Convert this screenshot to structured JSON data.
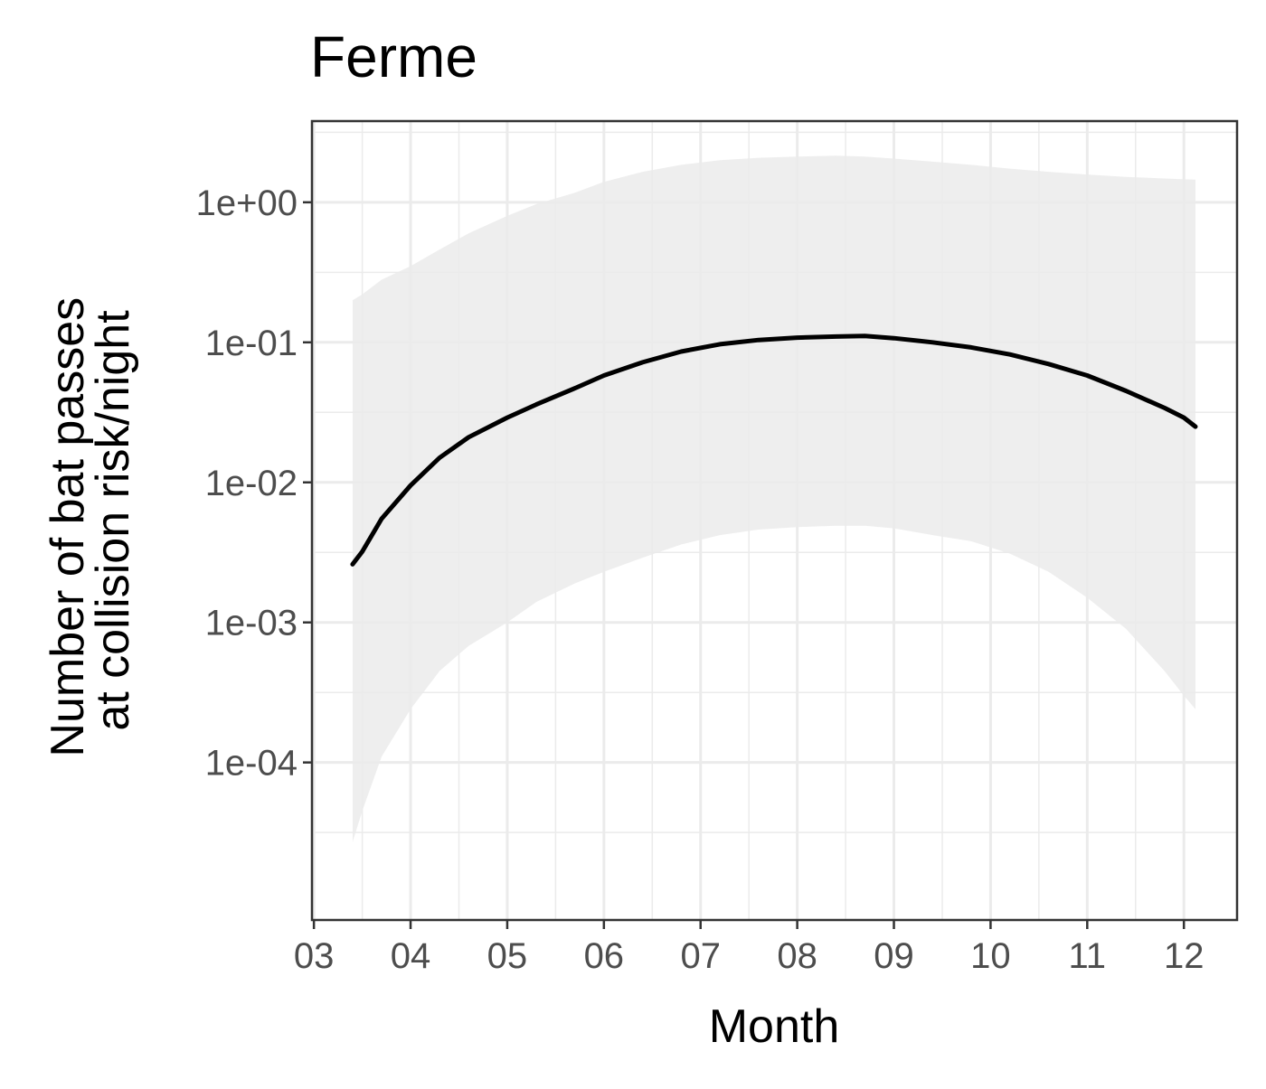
{
  "chart_data": {
    "type": "line",
    "title": "Ferme",
    "xlabel": "Month",
    "ylabel": [
      "Number of bat passes",
      "at collision risk/night"
    ],
    "x_ticks": [
      "03",
      "04",
      "05",
      "06",
      "07",
      "08",
      "09",
      "10",
      "11",
      "12"
    ],
    "y_ticks": [
      {
        "value": 0.0001,
        "label": "1e-04"
      },
      {
        "value": 0.001,
        "label": "1e-03"
      },
      {
        "value": 0.01,
        "label": "1e-02"
      },
      {
        "value": 0.1,
        "label": "1e-01"
      },
      {
        "value": 1,
        "label": "1e+00"
      }
    ],
    "x_unit": "month",
    "xlim": [
      2.98,
      12.55
    ],
    "ylim": [
      7.5e-06,
      3.8
    ],
    "y_scale": "log10",
    "grid": true,
    "series": [
      {
        "color": "#000000",
        "ribbon_color": "#ebebeb",
        "points": [
          {
            "x": 3.4,
            "y": 0.0026,
            "lower": 2.7e-05,
            "upper": 0.2
          },
          {
            "x": 3.5,
            "y": 0.0032,
            "lower": 4.5e-05,
            "upper": 0.22
          },
          {
            "x": 3.7,
            "y": 0.0055,
            "lower": 0.00011,
            "upper": 0.28
          },
          {
            "x": 4.0,
            "y": 0.0095,
            "lower": 0.00024,
            "upper": 0.35
          },
          {
            "x": 4.3,
            "y": 0.015,
            "lower": 0.00045,
            "upper": 0.46
          },
          {
            "x": 4.6,
            "y": 0.021,
            "lower": 0.00068,
            "upper": 0.6
          },
          {
            "x": 5.0,
            "y": 0.029,
            "lower": 0.001,
            "upper": 0.8
          },
          {
            "x": 5.3,
            "y": 0.036,
            "lower": 0.0014,
            "upper": 0.97
          },
          {
            "x": 5.7,
            "y": 0.047,
            "lower": 0.0019,
            "upper": 1.17
          },
          {
            "x": 6.0,
            "y": 0.058,
            "lower": 0.0023,
            "upper": 1.4
          },
          {
            "x": 6.4,
            "y": 0.072,
            "lower": 0.0029,
            "upper": 1.65
          },
          {
            "x": 6.8,
            "y": 0.086,
            "lower": 0.0036,
            "upper": 1.85
          },
          {
            "x": 7.2,
            "y": 0.097,
            "lower": 0.0042,
            "upper": 2.0
          },
          {
            "x": 7.6,
            "y": 0.104,
            "lower": 0.0046,
            "upper": 2.08
          },
          {
            "x": 8.0,
            "y": 0.108,
            "lower": 0.0048,
            "upper": 2.12
          },
          {
            "x": 8.4,
            "y": 0.11,
            "lower": 0.0049,
            "upper": 2.15
          },
          {
            "x": 8.7,
            "y": 0.111,
            "lower": 0.0049,
            "upper": 2.12
          },
          {
            "x": 9.0,
            "y": 0.107,
            "lower": 0.0047,
            "upper": 2.05
          },
          {
            "x": 9.4,
            "y": 0.1,
            "lower": 0.0042,
            "upper": 1.95
          },
          {
            "x": 9.8,
            "y": 0.092,
            "lower": 0.0038,
            "upper": 1.85
          },
          {
            "x": 10.2,
            "y": 0.082,
            "lower": 0.0031,
            "upper": 1.74
          },
          {
            "x": 10.6,
            "y": 0.07,
            "lower": 0.0023,
            "upper": 1.65
          },
          {
            "x": 11.0,
            "y": 0.058,
            "lower": 0.0015,
            "upper": 1.58
          },
          {
            "x": 11.4,
            "y": 0.045,
            "lower": 0.0009,
            "upper": 1.52
          },
          {
            "x": 11.8,
            "y": 0.034,
            "lower": 0.00045,
            "upper": 1.48
          },
          {
            "x": 12.0,
            "y": 0.029,
            "lower": 0.0003,
            "upper": 1.46
          },
          {
            "x": 12.12,
            "y": 0.025,
            "lower": 0.00024,
            "upper": 1.45
          }
        ]
      }
    ]
  }
}
